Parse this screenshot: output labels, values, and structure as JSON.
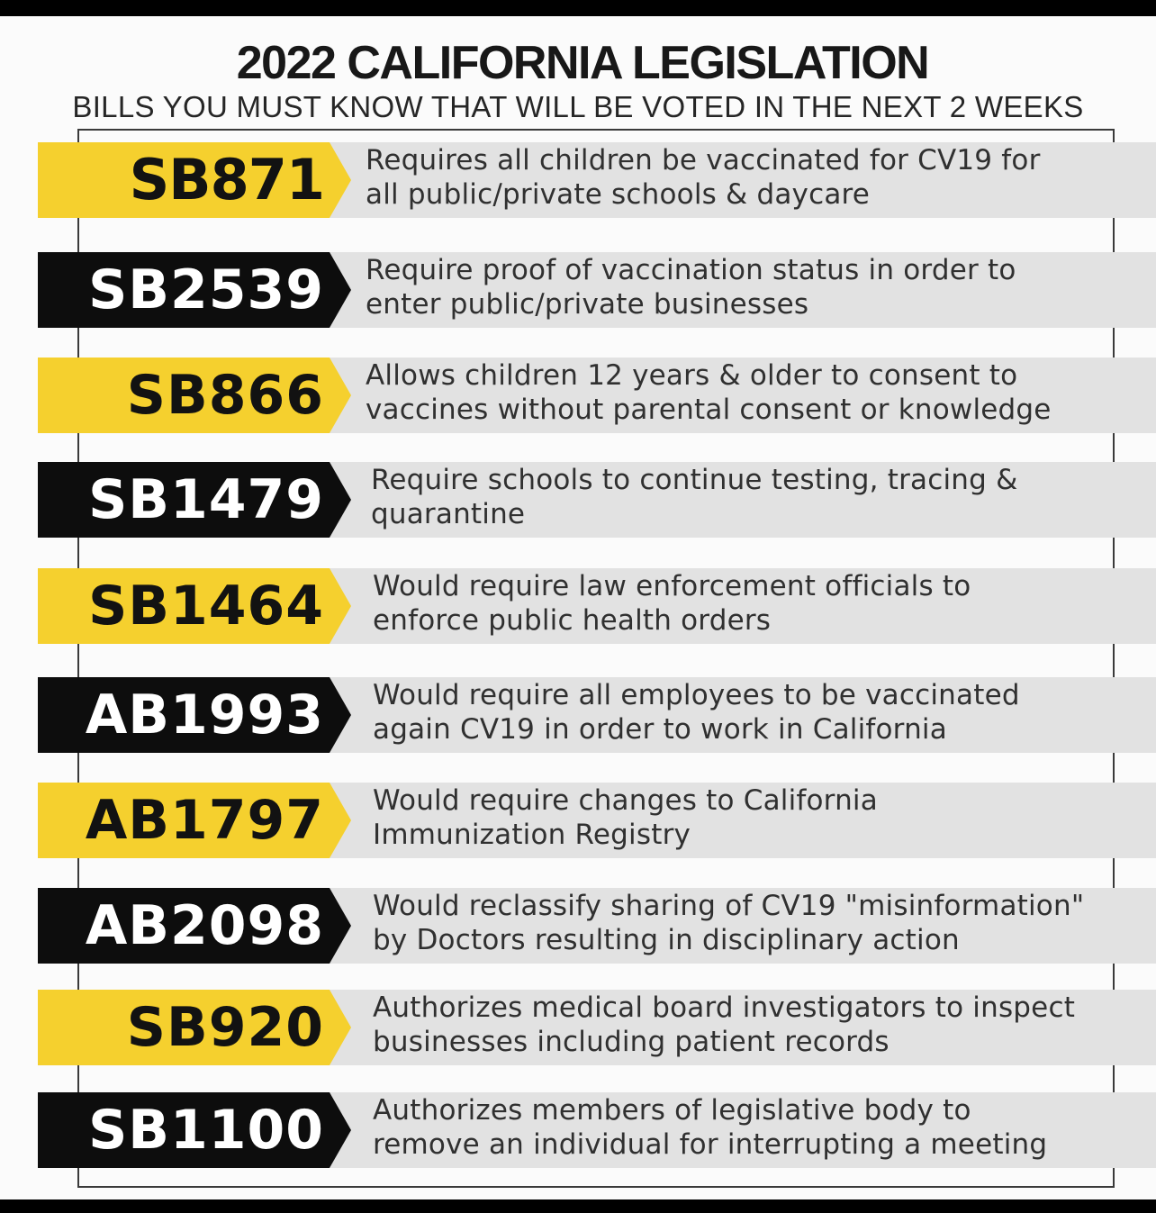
{
  "header": {
    "title": "2022 CALIFORNIA LEGISLATION",
    "subtitle": "BILLS YOU MUST KNOW THAT WILL BE VOTED IN THE NEXT 2 WEEKS"
  },
  "colors": {
    "yellow": "#f5d02e",
    "black": "#0d0d0d",
    "row_gray": "#e2e2e2"
  },
  "bills": [
    {
      "id": "SB871",
      "style": "yellow",
      "description": "Requires all children be vaccinated for CV19 for\nall public/private schools & daycare"
    },
    {
      "id": "SB2539",
      "style": "black",
      "description": "Require proof of vaccination status in order to\nenter public/private businesses"
    },
    {
      "id": "SB866",
      "style": "yellow",
      "description": "Allows children 12 years & older to consent to\nvaccines without parental consent or knowledge"
    },
    {
      "id": "SB1479",
      "style": "black",
      "description": "Require schools to continue testing, tracing &\nquarantine"
    },
    {
      "id": "SB1464",
      "style": "yellow",
      "description": "Would require law enforcement officials to\nenforce public health orders"
    },
    {
      "id": "AB1993",
      "style": "black",
      "description": "Would require all employees to be vaccinated\nagain CV19 in order to work in California"
    },
    {
      "id": "AB1797",
      "style": "yellow",
      "description": "Would require changes to California\nImmunization Registry"
    },
    {
      "id": "AB2098",
      "style": "black",
      "description": "Would reclassify sharing of CV19 \"misinformation\"\nby Doctors resulting in disciplinary action"
    },
    {
      "id": "SB920",
      "style": "yellow",
      "description": "Authorizes medical board investigators to inspect\nbusinesses including patient records"
    },
    {
      "id": "SB1100",
      "style": "black",
      "description": "Authorizes members of legislative body to\nremove an individual for interrupting a meeting"
    }
  ]
}
